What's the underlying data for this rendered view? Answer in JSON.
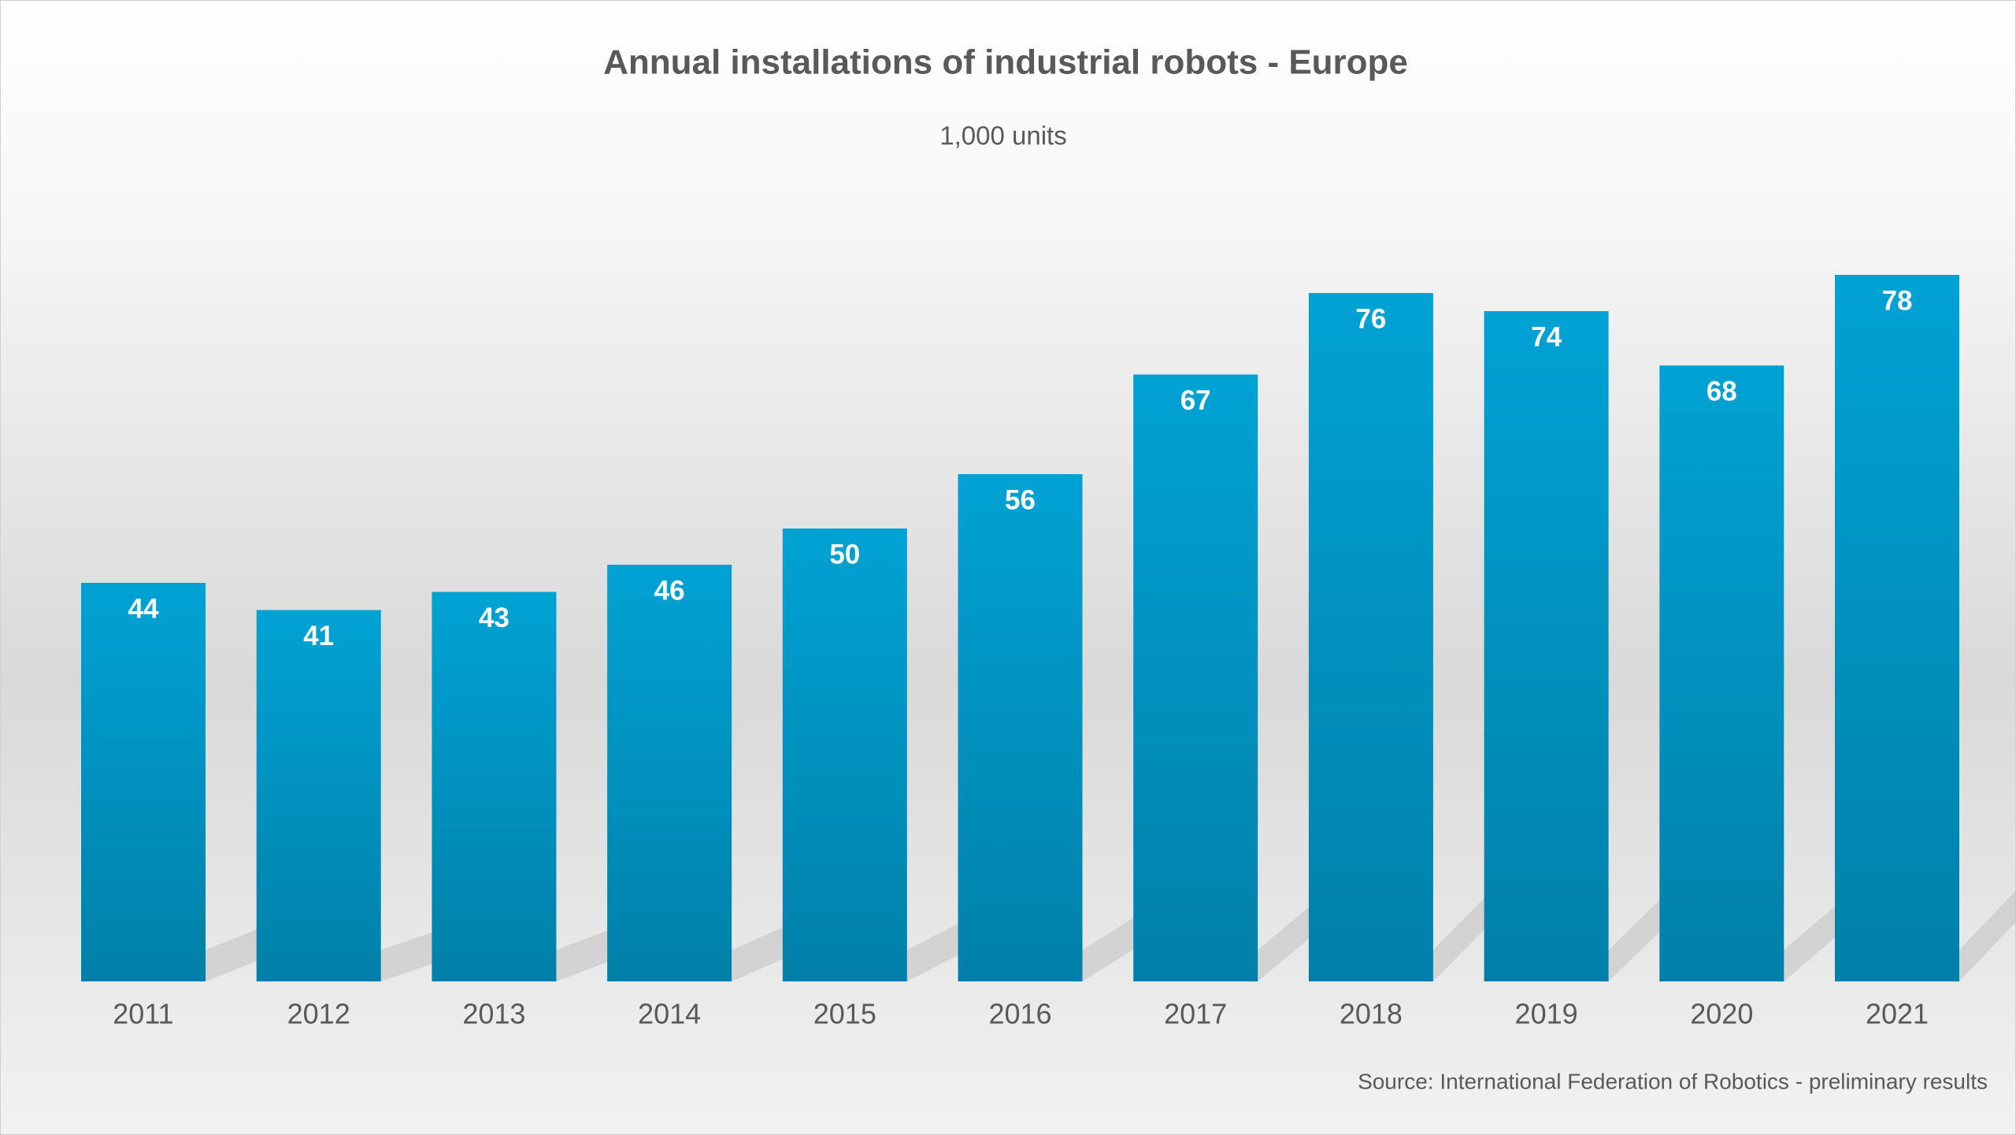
{
  "chart_data": {
    "type": "bar",
    "title": "Annual installations of industrial robots - Europe",
    "subtitle": "1,000 units",
    "source": "Source: International Federation of Robotics - preliminary results",
    "categories": [
      "2011",
      "2012",
      "2013",
      "2014",
      "2015",
      "2016",
      "2017",
      "2018",
      "2019",
      "2020",
      "2021"
    ],
    "values": [
      44,
      41,
      43,
      46,
      50,
      56,
      67,
      76,
      74,
      68,
      78
    ],
    "color": "#009bcc"
  }
}
